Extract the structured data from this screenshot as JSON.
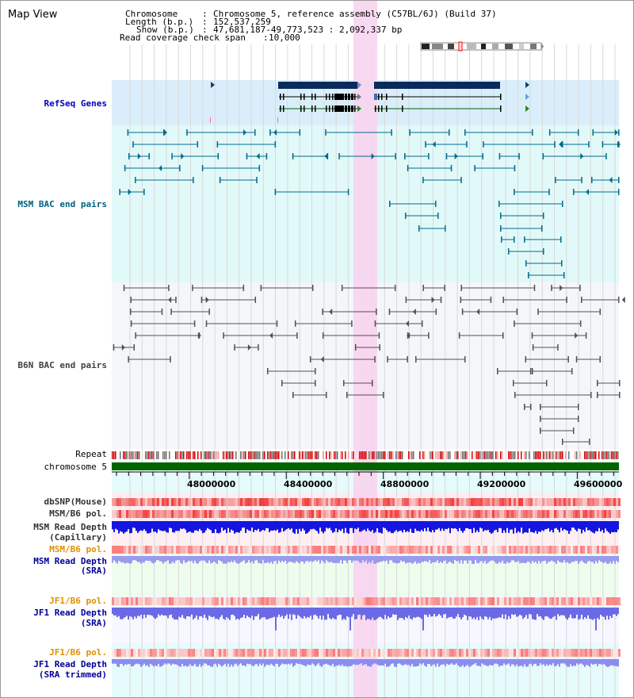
{
  "view_title": "Map View",
  "info": {
    "chromosome_key": "Chromosome",
    "chromosome_value": "Chromosome 5, reference assembly (C57BL/6J) (Build 37)",
    "length_key": "Length (b.p.)",
    "length_value": "152,537,259",
    "show_key": "Show (b.p.)",
    "show_value": "47,681,187-49,773,523 : 2,092,337 bp",
    "span_key": "Read coverage check span",
    "span_value": "10,000"
  },
  "tracks": {
    "refseq": "RefSeq Genes",
    "msm_bac": "MSM BAC end pairs",
    "b6n_bac": "B6N BAC end pairs",
    "repeat": "Repeat",
    "chromosome": "chromosome 5",
    "dbsnp": "dbSNP(Mouse)",
    "msm_b6_pol_1": "MSM/B6 pol.",
    "msm_depth_cap_1": "MSM Read Depth",
    "msm_depth_cap_2": "(Capillary)",
    "msm_b6_pol_2": "MSM/B6 pol.",
    "msm_depth_sra_1": "MSM Read Depth",
    "msm_depth_sra_2": "(SRA)",
    "jf1_b6_pol_1": "JF1/B6 pol.",
    "jf1_depth_1": "JF1 Read Depth",
    "jf1_depth_2": "(SRA)",
    "jf1_b6_pol_2": "JF1/B6 pol.",
    "jf1_trim_1": "JF1 Read Depth",
    "jf1_trim_2": "(SRA trimmed)"
  },
  "axis": {
    "ticks": [
      "48000000",
      "48400000",
      "48800000",
      "49200000",
      "49600000"
    ]
  },
  "colors": {
    "refseq_label": "#0000c0",
    "msm_bac_label": "#006080",
    "b6n_bac_label": "#404040",
    "pol_orange": "#e09000",
    "depth_blue": "#000099",
    "highlight": "#f8d4f0",
    "chromosome_bar": "#006400",
    "refseq_bg": "#d9eefa",
    "msm_bg": "#e2f9f9",
    "b6n_bg": "#f4f6fa"
  }
}
